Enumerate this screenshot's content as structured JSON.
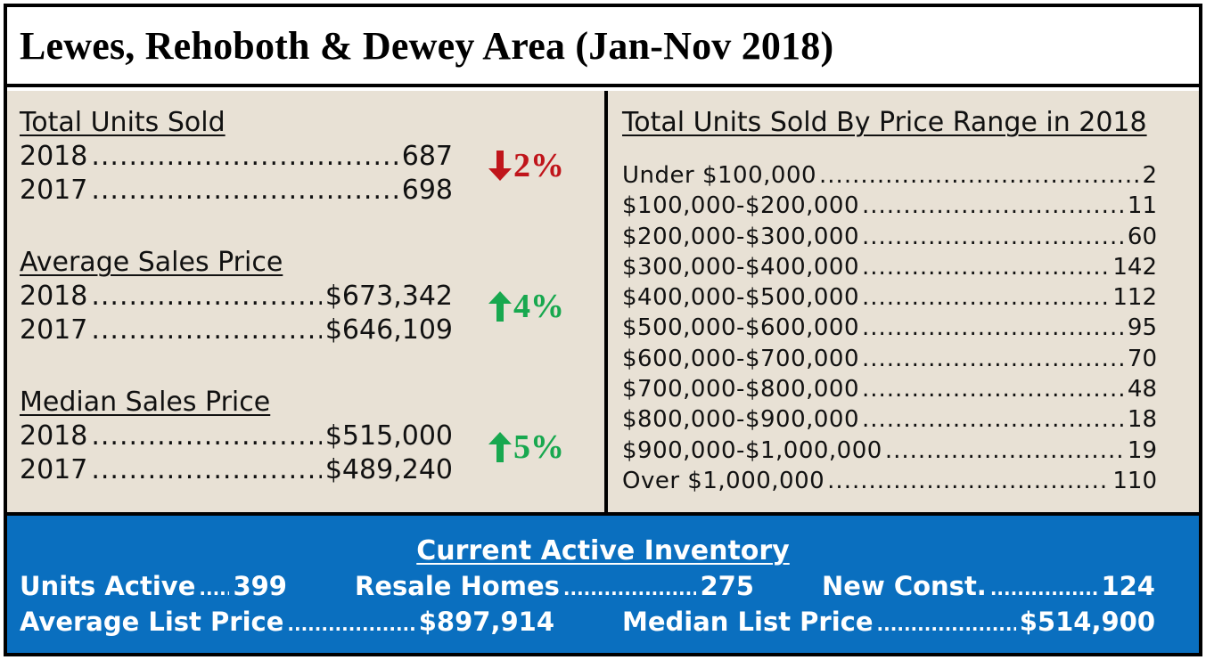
{
  "title": "Lewes, Rehoboth & Dewey Area (Jan-Nov 2018)",
  "total_units_sold": {
    "title": "Total Units Sold",
    "rows": [
      {
        "year": "2018",
        "value": "687"
      },
      {
        "year": "2017",
        "value": "698"
      }
    ],
    "change": {
      "direction": "down",
      "label": "2%",
      "color": "#c0151b",
      "icon": "arrow-down-icon"
    }
  },
  "average_sales_price": {
    "title": "Average Sales Price",
    "rows": [
      {
        "year": "2018",
        "value": "$673,342"
      },
      {
        "year": "2017",
        "value": "$646,109"
      }
    ],
    "change": {
      "direction": "up",
      "label": "4%",
      "color": "#18a84f",
      "icon": "arrow-up-icon"
    }
  },
  "median_sales_price": {
    "title": "Median Sales Price",
    "rows": [
      {
        "year": "2018",
        "value": "$515,000"
      },
      {
        "year": "2017",
        "value": "$489,240"
      }
    ],
    "change": {
      "direction": "up",
      "label": "5%",
      "color": "#18a84f",
      "icon": "arrow-up-icon"
    }
  },
  "price_range": {
    "title": "Total Units Sold By Price Range in 2018",
    "rows": [
      {
        "range": "Under $100,000",
        "units": "2"
      },
      {
        "range": "$100,000-$200,000",
        "units": "11"
      },
      {
        "range": "$200,000-$300,000",
        "units": "60"
      },
      {
        "range": "$300,000-$400,000",
        "units": "142"
      },
      {
        "range": "$400,000-$500,000",
        "units": "112"
      },
      {
        "range": "$500,000-$600,000",
        "units": "95"
      },
      {
        "range": "$600,000-$700,000",
        "units": "70"
      },
      {
        "range": "$700,000-$800,000",
        "units": "48"
      },
      {
        "range": "$800,000-$900,000",
        "units": "18"
      },
      {
        "range": "$900,000-$1,000,000",
        "units": "19"
      },
      {
        "range": "Over $1,000,000",
        "units": "110"
      }
    ]
  },
  "inventory": {
    "title": "Current Active Inventory",
    "units_active": {
      "label": "Units Active",
      "value": "399"
    },
    "resale_homes": {
      "label": "Resale Homes",
      "value": "275"
    },
    "new_const": {
      "label": "New Const.",
      "value": "124"
    },
    "average_list_price": {
      "label": "Average List Price",
      "value": "$897,914"
    },
    "median_list_price": {
      "label": "Median List Price",
      "value": "$514,900"
    }
  },
  "colors": {
    "panel_bg": "#e8e1d5",
    "inventory_bg": "#0a6fbf",
    "down": "#c0151b",
    "up": "#18a84f"
  }
}
